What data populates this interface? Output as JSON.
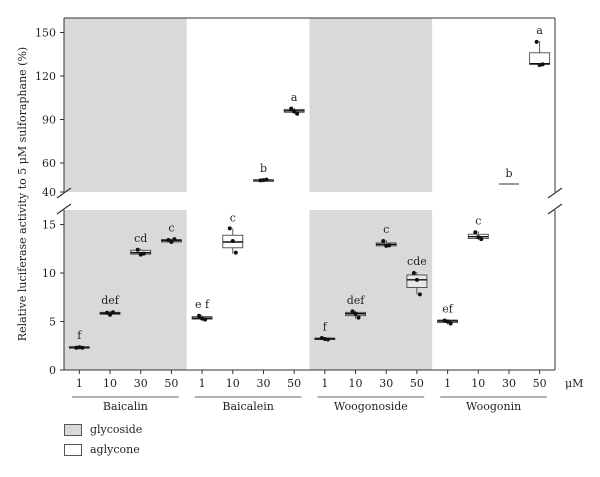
{
  "chart_data": {
    "type": "boxplot",
    "ylabel": "Relative luciferase activity to 5 μM sulforaphane (%)",
    "x_unit": "μM",
    "concentrations": [
      "1",
      "10",
      "30",
      "50"
    ],
    "groups": [
      {
        "name": "Baicalin",
        "type": "glycoside"
      },
      {
        "name": "Baicalein",
        "type": "aglycone"
      },
      {
        "name": "Woogonoside",
        "type": "glycoside"
      },
      {
        "name": "Woogonin",
        "type": "aglycone"
      }
    ],
    "y_ticks_lower": [
      "0",
      "5",
      "10",
      "15"
    ],
    "y_ticks_upper": [
      "40",
      "60",
      "90",
      "120",
      "150"
    ],
    "y_axis": {
      "lower_range": [
        0,
        15
      ],
      "upper_range": [
        40,
        150
      ],
      "broken": true
    },
    "series": [
      {
        "group": "Baicalin",
        "conc": "1",
        "min": 2.2,
        "q1": 2.3,
        "median": 2.35,
        "q3": 2.4,
        "max": 2.5,
        "points": [
          2.3,
          2.35,
          2.3
        ],
        "letter": "f"
      },
      {
        "group": "Baicalin",
        "conc": "10",
        "min": 5.6,
        "q1": 5.75,
        "median": 5.85,
        "q3": 5.95,
        "max": 6.1,
        "points": [
          5.9,
          5.7,
          5.95
        ],
        "letter": "def"
      },
      {
        "group": "Baicalin",
        "conc": "30",
        "min": 11.8,
        "q1": 11.95,
        "median": 12.1,
        "q3": 12.35,
        "max": 12.5,
        "points": [
          12.4,
          11.9,
          12.0
        ],
        "letter": "cd"
      },
      {
        "group": "Baicalin",
        "conc": "50",
        "min": 13.1,
        "q1": 13.2,
        "median": 13.35,
        "q3": 13.45,
        "max": 13.55,
        "points": [
          13.4,
          13.2,
          13.5
        ],
        "letter": "c"
      },
      {
        "group": "Baicalein",
        "conc": "1",
        "min": 5.2,
        "q1": 5.25,
        "median": 5.35,
        "q3": 5.5,
        "max": 5.65,
        "points": [
          5.6,
          5.3,
          5.2
        ],
        "letter": "e f"
      },
      {
        "group": "Baicalein",
        "conc": "10",
        "min": 12.0,
        "q1": 12.6,
        "median": 13.2,
        "q3": 13.9,
        "max": 14.6,
        "points": [
          14.6,
          13.3,
          12.1
        ],
        "letter": "c"
      },
      {
        "group": "Baicalein",
        "conc": "30",
        "min": 47.5,
        "q1": 48.0,
        "median": 48.2,
        "q3": 48.4,
        "max": 48.8,
        "points": [
          48.0,
          48.2,
          48.5
        ],
        "letter": "b"
      },
      {
        "group": "Baicalein",
        "conc": "50",
        "min": 94.0,
        "q1": 95.0,
        "median": 96.0,
        "q3": 97.0,
        "max": 98.0,
        "points": [
          97.5,
          95.5,
          94.0
        ],
        "letter": "a"
      },
      {
        "group": "Woogonoside",
        "conc": "1",
        "min": 3.1,
        "q1": 3.15,
        "median": 3.2,
        "q3": 3.3,
        "max": 3.35,
        "points": [
          3.3,
          3.2,
          3.15
        ],
        "letter": "f"
      },
      {
        "group": "Woogonoside",
        "conc": "10",
        "min": 5.3,
        "q1": 5.6,
        "median": 5.8,
        "q3": 5.95,
        "max": 6.1,
        "points": [
          6.05,
          5.8,
          5.4
        ],
        "letter": "def"
      },
      {
        "group": "Woogonoside",
        "conc": "30",
        "min": 12.7,
        "q1": 12.8,
        "median": 12.95,
        "q3": 13.1,
        "max": 13.4,
        "points": [
          13.3,
          12.8,
          12.85
        ],
        "letter": "c"
      },
      {
        "group": "Woogonoside",
        "conc": "50",
        "min": 7.8,
        "q1": 8.5,
        "median": 9.3,
        "q3": 9.8,
        "max": 10.1,
        "points": [
          10.0,
          9.3,
          7.8
        ],
        "letter": "cde"
      },
      {
        "group": "Woogonin",
        "conc": "1",
        "min": 4.7,
        "q1": 4.9,
        "median": 5.05,
        "q3": 5.15,
        "max": 5.2,
        "points": [
          5.1,
          5.0,
          4.8
        ],
        "letter": "ef"
      },
      {
        "group": "Woogonin",
        "conc": "10",
        "min": 13.4,
        "q1": 13.55,
        "median": 13.75,
        "q3": 14.0,
        "max": 14.3,
        "points": [
          14.2,
          13.7,
          13.5
        ],
        "letter": "c"
      },
      {
        "group": "Woogonin",
        "conc": "30",
        "min": 45.5,
        "q1": 45.5,
        "median": 45.5,
        "q3": 45.5,
        "max": 45.5,
        "points": [],
        "letter": "b"
      },
      {
        "group": "Woogonin",
        "conc": "50",
        "min": 127.0,
        "q1": 128.0,
        "median": 128.5,
        "q3": 136.0,
        "max": 144.0,
        "points": [
          143.5,
          127.5,
          128.0
        ],
        "letter": "a"
      }
    ],
    "colors": {
      "glycoside": "#d9d9d9",
      "aglycone": "#ffffff"
    }
  },
  "legend": {
    "glycoside": "glycoside",
    "aglycone": "aglycone"
  }
}
